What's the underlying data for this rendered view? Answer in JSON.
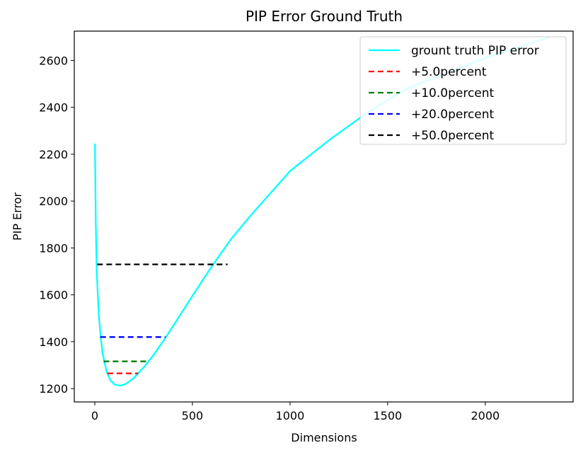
{
  "chart_data": {
    "type": "line",
    "title": "PIP Error Ground Truth",
    "xlabel": "Dimensions",
    "ylabel": "PIP Error",
    "xlim": [
      -105,
      2450
    ],
    "ylim": [
      1143,
      2725
    ],
    "xticks": [
      0,
      500,
      1000,
      1500,
      2000
    ],
    "yticks": [
      1200,
      1400,
      1600,
      1800,
      2000,
      2200,
      2400,
      2600
    ],
    "grid": false,
    "legend_position": "top-right",
    "series": [
      {
        "name": "grount truth PIP error",
        "color": "#00ffff",
        "style": "solid",
        "x": [
          1,
          5,
          10,
          20,
          30,
          40,
          60,
          80,
          100,
          130,
          160,
          200,
          250,
          300,
          350,
          400,
          500,
          600,
          700,
          800,
          1000,
          1200,
          1400,
          1600,
          1800,
          2000,
          2200,
          2330
        ],
        "y": [
          2245,
          1900,
          1700,
          1520,
          1420,
          1350,
          1275,
          1235,
          1218,
          1212,
          1220,
          1245,
          1290,
          1343,
          1402,
          1465,
          1595,
          1722,
          1840,
          1940,
          2128,
          2260,
          2380,
          2480,
          2545,
          2610,
          2665,
          2700
        ]
      },
      {
        "name": "+5.0percent",
        "color": "#ff0000",
        "style": "dashed",
        "x": [
          65,
          222
        ],
        "y": [
          1265,
          1265
        ]
      },
      {
        "name": "+10.0percent",
        "color": "#008000",
        "style": "dashed",
        "x": [
          45,
          265
        ],
        "y": [
          1316,
          1316
        ]
      },
      {
        "name": "+20.0percent",
        "color": "#0000ff",
        "style": "dashed",
        "x": [
          28,
          362
        ],
        "y": [
          1420,
          1420
        ]
      },
      {
        "name": "+50.0percent",
        "color": "#000000",
        "style": "dashed",
        "x": [
          12,
          680
        ],
        "y": [
          1730,
          1730
        ]
      }
    ]
  }
}
